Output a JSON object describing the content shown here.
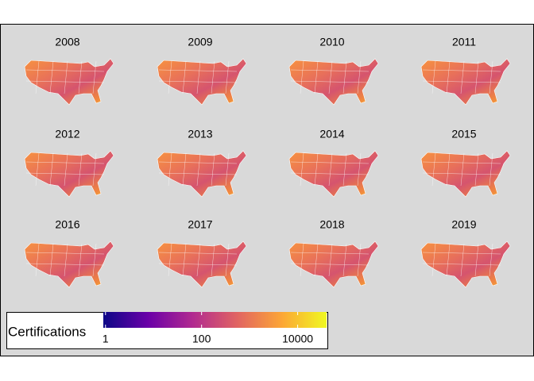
{
  "chart_data": {
    "type": "choropleth-facets",
    "panels": [
      "2008",
      "2009",
      "2010",
      "2011",
      "2012",
      "2013",
      "2014",
      "2015",
      "2016",
      "2017",
      "2018",
      "2019"
    ],
    "legend_title": "Certifications",
    "colorbar": {
      "log": true,
      "lim": [
        0.9,
        40000
      ],
      "ticks": [
        1,
        100,
        10000
      ],
      "colors": [
        "#0d0887",
        "#6a00a8",
        "#b12a90",
        "#e16462",
        "#fca636",
        "#f0f921"
      ]
    }
  }
}
